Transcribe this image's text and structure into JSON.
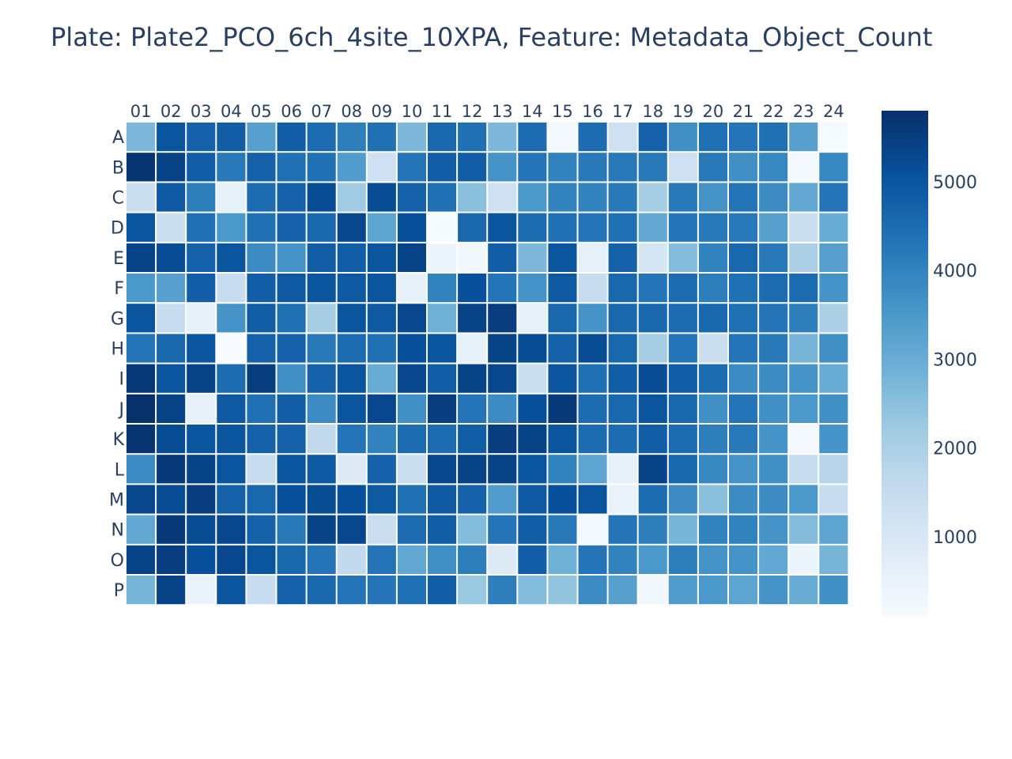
{
  "title": "Plate: Plate2_PCO_6ch_4site_10XPA, Feature: Metadata_Object_Count",
  "chart_data": {
    "type": "heatmap",
    "columns": [
      "01",
      "02",
      "03",
      "04",
      "05",
      "06",
      "07",
      "08",
      "09",
      "10",
      "11",
      "12",
      "13",
      "14",
      "15",
      "16",
      "17",
      "18",
      "19",
      "20",
      "21",
      "22",
      "23",
      "24"
    ],
    "rows": [
      "A",
      "B",
      "C",
      "D",
      "E",
      "F",
      "G",
      "H",
      "I",
      "J",
      "K",
      "L",
      "M",
      "N",
      "O",
      "P"
    ],
    "z": [
      [
        2700,
        5000,
        4700,
        4800,
        3300,
        4800,
        4500,
        4100,
        4400,
        2700,
        4600,
        4400,
        2700,
        4500,
        200,
        4500,
        1300,
        4700,
        3700,
        4400,
        4300,
        4400,
        3300,
        150
      ],
      [
        5700,
        5400,
        4800,
        4200,
        4700,
        4400,
        4400,
        3400,
        1300,
        4300,
        4800,
        4800,
        3600,
        4300,
        4000,
        4200,
        4200,
        4200,
        1300,
        4200,
        3700,
        3900,
        200,
        3900
      ],
      [
        1400,
        4900,
        4100,
        600,
        4500,
        4700,
        5200,
        2200,
        5200,
        4700,
        4400,
        2500,
        1300,
        3500,
        4000,
        4000,
        4200,
        2100,
        4200,
        3600,
        4300,
        3800,
        3100,
        4300
      ],
      [
        5000,
        1400,
        4400,
        3500,
        4400,
        4700,
        4600,
        5300,
        3200,
        5100,
        150,
        4600,
        5000,
        4500,
        4400,
        4300,
        4400,
        3100,
        4300,
        4200,
        4200,
        3300,
        1400,
        3000
      ],
      [
        5400,
        5200,
        4700,
        5000,
        3800,
        3600,
        4800,
        4800,
        5000,
        5400,
        400,
        300,
        4800,
        2700,
        5000,
        600,
        4700,
        1100,
        2600,
        4000,
        4600,
        4200,
        2000,
        3300
      ],
      [
        3500,
        3300,
        4800,
        1500,
        4800,
        4900,
        5000,
        4900,
        5000,
        600,
        4000,
        5100,
        4300,
        3600,
        4900,
        1500,
        4600,
        4300,
        4500,
        4100,
        4400,
        4500,
        4500,
        3600
      ],
      [
        5000,
        1500,
        600,
        3600,
        4800,
        4400,
        2100,
        5000,
        4900,
        5300,
        2900,
        5400,
        5500,
        600,
        4600,
        3600,
        4600,
        4600,
        4500,
        4600,
        4400,
        4300,
        4100,
        2000
      ],
      [
        4300,
        4600,
        5000,
        100,
        4700,
        4700,
        4200,
        4500,
        4400,
        5100,
        5000,
        600,
        5400,
        5200,
        4700,
        5200,
        4600,
        2100,
        4300,
        1400,
        4300,
        4200,
        2800,
        3700
      ],
      [
        5600,
        5000,
        5400,
        4500,
        5500,
        3700,
        4700,
        5000,
        3000,
        5300,
        4800,
        5400,
        5300,
        1400,
        5000,
        4400,
        4800,
        5200,
        4800,
        4500,
        3800,
        3800,
        3600,
        3000
      ],
      [
        5800,
        5400,
        600,
        4900,
        4400,
        4800,
        3800,
        5000,
        5300,
        3700,
        5500,
        4300,
        3800,
        5100,
        5600,
        4500,
        4600,
        5000,
        4600,
        3700,
        4300,
        3700,
        3500,
        3700
      ],
      [
        5700,
        5200,
        5000,
        5000,
        4700,
        4700,
        1600,
        4300,
        4000,
        4500,
        4500,
        4800,
        5500,
        5400,
        5000,
        4500,
        4500,
        4800,
        4500,
        4100,
        4200,
        3600,
        200,
        3600
      ],
      [
        3800,
        5600,
        5400,
        5000,
        1500,
        5000,
        4900,
        800,
        4700,
        1400,
        5300,
        5400,
        5400,
        5000,
        4000,
        3200,
        600,
        5400,
        4600,
        3900,
        3600,
        3700,
        1500,
        1800
      ],
      [
        5300,
        5200,
        5500,
        4700,
        4600,
        5100,
        5200,
        5100,
        4900,
        4400,
        4900,
        4700,
        3400,
        4900,
        5100,
        5000,
        500,
        4500,
        3800,
        2500,
        3800,
        3800,
        3500,
        1500
      ],
      [
        3100,
        5600,
        5200,
        5300,
        4700,
        4200,
        5400,
        5300,
        1400,
        4500,
        4800,
        2600,
        4300,
        4800,
        4200,
        200,
        4300,
        4100,
        2800,
        4000,
        4000,
        3600,
        2600,
        3200
      ],
      [
        5400,
        5500,
        5100,
        5300,
        5000,
        4600,
        4300,
        1600,
        4300,
        3100,
        3700,
        4100,
        800,
        4800,
        2900,
        4300,
        4000,
        3500,
        4100,
        3600,
        3600,
        3100,
        400,
        2800
      ],
      [
        2800,
        5400,
        500,
        5000,
        1500,
        4700,
        4600,
        4300,
        4300,
        4400,
        4800,
        2300,
        4100,
        2600,
        2400,
        3800,
        3300,
        300,
        3400,
        3500,
        3200,
        3600,
        3000,
        3700
      ]
    ],
    "zmin": 100,
    "zmax": 5800,
    "colorscale": "Blues",
    "colorbar_ticks": [
      "1000",
      "2000",
      "3000",
      "4000",
      "5000"
    ]
  }
}
